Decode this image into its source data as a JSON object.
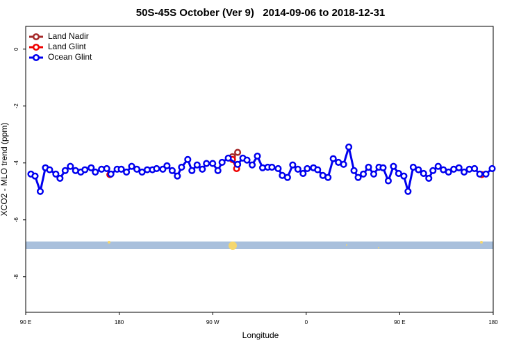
{
  "chart_data": {
    "type": "line",
    "title": "50S-45S October (Ver 9)   2014-09-06 to 2018-12-31",
    "x_label": "Longitude",
    "y_label": "XCO2 - MLO trend (ppm)",
    "xlim": [
      90,
      540
    ],
    "ylim": [
      -9.25,
      0.8
    ],
    "xticks": [
      {
        "value": 90,
        "label": "90 E"
      },
      180,
      {
        "value": 270,
        "label": "90 W"
      },
      {
        "value": 360,
        "label": "0"
      },
      {
        "value": 450,
        "label": "90 E"
      },
      {
        "value": 540,
        "label": "180"
      }
    ],
    "yticks": [
      0,
      -2,
      -4,
      -6,
      -8
    ],
    "legend": "top-left",
    "series": [
      {
        "name": "Land Nadir",
        "color": "#a52a2a",
        "x": [
          289,
          294
        ],
        "values": [
          -3.78,
          -3.63
        ]
      },
      {
        "name": "Land Glint",
        "color": "#ee0000",
        "x": [
          171,
          null,
          289,
          293,
          null,
          529
        ],
        "values": [
          -4.41,
          null,
          -3.88,
          -4.2,
          null,
          -4.41
        ]
      },
      {
        "name": "Ocean Glint",
        "color": "#0000ee",
        "x": [
          95,
          99,
          104,
          109,
          113,
          119,
          123,
          128,
          133,
          138,
          143,
          147,
          153,
          157,
          163,
          168,
          172,
          178,
          182,
          187,
          192,
          197,
          202,
          207,
          212,
          216,
          222,
          226,
          231,
          236,
          240,
          246,
          250,
          255,
          260,
          264,
          270,
          275,
          279,
          285,
          294,
          299,
          303,
          308,
          313,
          318,
          323,
          327,
          333,
          337,
          342,
          347,
          352,
          357,
          361,
          367,
          371,
          376,
          381,
          386,
          391,
          396,
          401,
          406,
          410,
          415,
          420,
          425,
          430,
          434,
          439,
          444,
          449,
          454,
          458,
          463,
          468,
          473,
          478,
          482,
          487,
          492,
          497,
          502,
          507,
          512,
          517,
          522,
          527,
          533,
          539
        ],
        "values": [
          -4.39,
          -4.46,
          -5.0,
          -4.17,
          -4.24,
          -4.39,
          -4.54,
          -4.27,
          -4.12,
          -4.27,
          -4.32,
          -4.24,
          -4.17,
          -4.32,
          -4.22,
          -4.2,
          -4.39,
          -4.22,
          -4.22,
          -4.32,
          -4.12,
          -4.22,
          -4.32,
          -4.24,
          -4.24,
          -4.2,
          -4.22,
          -4.1,
          -4.27,
          -4.46,
          -4.15,
          -3.88,
          -4.27,
          -4.07,
          -4.22,
          -4.02,
          -4.02,
          -4.27,
          -3.98,
          -3.83,
          -4.05,
          -3.83,
          -3.9,
          -4.07,
          -3.76,
          -4.17,
          -4.15,
          -4.15,
          -4.2,
          -4.44,
          -4.51,
          -4.07,
          -4.22,
          -4.37,
          -4.2,
          -4.17,
          -4.24,
          -4.44,
          -4.51,
          -3.85,
          -3.98,
          -4.05,
          -3.44,
          -4.27,
          -4.51,
          -4.39,
          -4.15,
          -4.39,
          -4.15,
          -4.17,
          -4.63,
          -4.12,
          -4.37,
          -4.46,
          -5.0,
          -4.15,
          -4.24,
          -4.37,
          -4.54,
          -4.27,
          -4.12,
          -4.24,
          -4.32,
          -4.22,
          -4.17,
          -4.32,
          -4.22,
          -4.2,
          -4.39,
          -4.39,
          -4.2
        ]
      }
    ]
  }
}
